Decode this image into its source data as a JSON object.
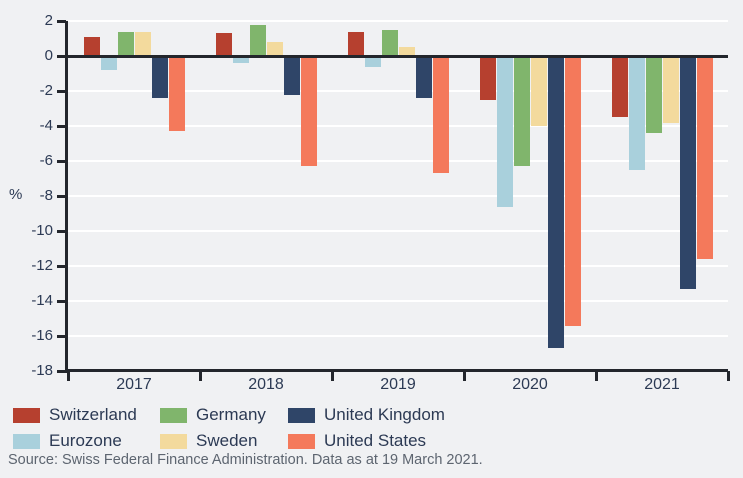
{
  "chart_data": {
    "type": "bar",
    "title": "",
    "xlabel": "",
    "ylabel": "%",
    "categories": [
      "2017",
      "2018",
      "2019",
      "2020",
      "2021"
    ],
    "series": [
      {
        "name": "Switzerland",
        "color": "#b6402f",
        "values": [
          1.1,
          1.3,
          1.4,
          -2.5,
          -3.5
        ]
      },
      {
        "name": "Eurozone",
        "color": "#a9d0dc",
        "values": [
          -0.8,
          -0.4,
          -0.6,
          -8.6,
          -6.5
        ]
      },
      {
        "name": "Germany",
        "color": "#80b56c",
        "values": [
          1.4,
          1.8,
          1.5,
          -6.3,
          -4.4
        ]
      },
      {
        "name": "Sweden",
        "color": "#f3da9d",
        "values": [
          1.4,
          0.8,
          0.5,
          -4.0,
          -3.8
        ]
      },
      {
        "name": "United Kingdom",
        "color": "#2f4568",
        "values": [
          -2.4,
          -2.2,
          -2.4,
          -16.7,
          -13.3
        ]
      },
      {
        "name": "United States",
        "color": "#f4795b",
        "values": [
          -4.3,
          -6.3,
          -6.7,
          -15.4,
          -11.6
        ]
      }
    ],
    "ylim": [
      -18,
      2
    ],
    "yticks": [
      2,
      0,
      -2,
      -4,
      -6,
      -8,
      -10,
      -12,
      -14,
      -16,
      -18
    ],
    "grid": true,
    "gridline_color": "#ffffff",
    "axis_color": "#23262c",
    "background_color": "#f0f1f3",
    "legend_position": "bottom",
    "legend_rows": [
      [
        "Switzerland",
        "Germany",
        "United Kingdom"
      ],
      [
        "Eurozone",
        "Sweden",
        "United States"
      ]
    ]
  },
  "source": {
    "text": "Source: Swiss Federal Finance Administration. Data as at 19 March 2021."
  }
}
